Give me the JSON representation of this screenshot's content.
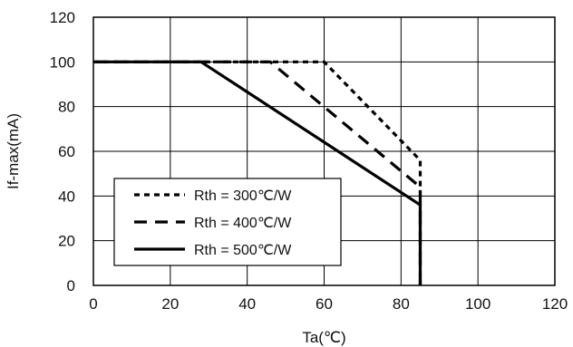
{
  "chart_data": {
    "type": "line",
    "xlabel": "Ta(℃)",
    "ylabel": "If-max(mA)",
    "xlim": [
      0,
      120
    ],
    "ylim": [
      0,
      120
    ],
    "x_ticks": [
      0,
      20,
      40,
      60,
      80,
      100,
      120
    ],
    "y_ticks": [
      0,
      20,
      40,
      60,
      80,
      100,
      120
    ],
    "x_tick_labels": [
      "0",
      "20",
      "40",
      "60",
      "80",
      "100",
      "120"
    ],
    "y_tick_labels": [
      "0",
      "20",
      "40",
      "60",
      "80",
      "100",
      "120"
    ],
    "grid": true,
    "legend_position": "bottom-left",
    "series": [
      {
        "name": "Rth = 300℃/W",
        "line_style": "short-dash",
        "color": "#000000",
        "x": [
          0,
          60,
          85,
          85
        ],
        "y": [
          100,
          100,
          56,
          0
        ]
      },
      {
        "name": "Rth = 400℃/W",
        "line_style": "long-dash",
        "color": "#000000",
        "x": [
          0,
          46,
          85,
          85
        ],
        "y": [
          100,
          100,
          44,
          0
        ]
      },
      {
        "name": "Rth = 500℃/W",
        "line_style": "solid",
        "color": "#000000",
        "x": [
          0,
          28,
          85,
          85
        ],
        "y": [
          100,
          100,
          36,
          0
        ]
      }
    ]
  }
}
